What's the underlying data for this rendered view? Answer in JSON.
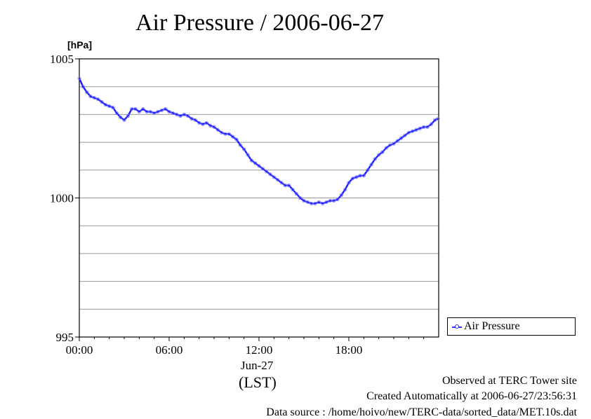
{
  "chart_data": {
    "type": "line",
    "title": "Air Pressure / 2006-06-27",
    "ylabel": "[hPa]",
    "xlabel_date": "Jun-27",
    "xlabel_tz": "(LST)",
    "ylim": [
      995,
      1005
    ],
    "xlim": [
      0,
      24
    ],
    "y_ticks": [
      995,
      1000,
      1005
    ],
    "y_minor_ticks": [
      996,
      997,
      998,
      999,
      1001,
      1002,
      1003,
      1004
    ],
    "x_ticks": [
      {
        "value": 0,
        "label": "00:00"
      },
      {
        "value": 6,
        "label": "06:00"
      },
      {
        "value": 12,
        "label": "12:00"
      },
      {
        "value": 18,
        "label": "18:00"
      }
    ],
    "grid": true,
    "legend": {
      "position": "right",
      "entries": [
        "Air Pressure"
      ]
    },
    "series": [
      {
        "name": "Air Pressure",
        "color": "#3333ff",
        "points": [
          [
            0.0,
            1004.3
          ],
          [
            0.25,
            1004.0
          ],
          [
            0.5,
            1003.8
          ],
          [
            0.75,
            1003.65
          ],
          [
            1.0,
            1003.6
          ],
          [
            1.25,
            1003.55
          ],
          [
            1.5,
            1003.45
          ],
          [
            1.75,
            1003.35
          ],
          [
            2.0,
            1003.3
          ],
          [
            2.25,
            1003.25
          ],
          [
            2.5,
            1003.05
          ],
          [
            2.75,
            1002.9
          ],
          [
            3.0,
            1002.8
          ],
          [
            3.25,
            1002.95
          ],
          [
            3.5,
            1003.2
          ],
          [
            3.75,
            1003.2
          ],
          [
            4.0,
            1003.1
          ],
          [
            4.25,
            1003.2
          ],
          [
            4.5,
            1003.1
          ],
          [
            4.75,
            1003.1
          ],
          [
            5.0,
            1003.05
          ],
          [
            5.25,
            1003.1
          ],
          [
            5.5,
            1003.15
          ],
          [
            5.75,
            1003.2
          ],
          [
            6.0,
            1003.1
          ],
          [
            6.25,
            1003.05
          ],
          [
            6.5,
            1003.0
          ],
          [
            6.75,
            1002.95
          ],
          [
            7.0,
            1003.0
          ],
          [
            7.25,
            1002.95
          ],
          [
            7.5,
            1002.85
          ],
          [
            7.75,
            1002.8
          ],
          [
            8.0,
            1002.7
          ],
          [
            8.25,
            1002.65
          ],
          [
            8.5,
            1002.7
          ],
          [
            8.75,
            1002.6
          ],
          [
            9.0,
            1002.55
          ],
          [
            9.25,
            1002.45
          ],
          [
            9.5,
            1002.35
          ],
          [
            9.75,
            1002.3
          ],
          [
            10.0,
            1002.3
          ],
          [
            10.25,
            1002.2
          ],
          [
            10.5,
            1002.1
          ],
          [
            10.75,
            1001.9
          ],
          [
            11.0,
            1001.75
          ],
          [
            11.25,
            1001.55
          ],
          [
            11.5,
            1001.35
          ],
          [
            11.75,
            1001.25
          ],
          [
            12.0,
            1001.15
          ],
          [
            12.25,
            1001.05
          ],
          [
            12.5,
            1000.95
          ],
          [
            12.75,
            1000.85
          ],
          [
            13.0,
            1000.75
          ],
          [
            13.25,
            1000.65
          ],
          [
            13.5,
            1000.55
          ],
          [
            13.75,
            1000.45
          ],
          [
            14.0,
            1000.45
          ],
          [
            14.25,
            1000.3
          ],
          [
            14.5,
            1000.15
          ],
          [
            14.75,
            1000.0
          ],
          [
            15.0,
            999.9
          ],
          [
            15.25,
            999.85
          ],
          [
            15.5,
            999.8
          ],
          [
            15.75,
            999.8
          ],
          [
            16.0,
            999.85
          ],
          [
            16.25,
            999.8
          ],
          [
            16.5,
            999.85
          ],
          [
            16.75,
            999.9
          ],
          [
            17.0,
            999.9
          ],
          [
            17.25,
            999.95
          ],
          [
            17.5,
            1000.1
          ],
          [
            17.75,
            1000.3
          ],
          [
            18.0,
            1000.55
          ],
          [
            18.25,
            1000.7
          ],
          [
            18.5,
            1000.75
          ],
          [
            18.75,
            1000.8
          ],
          [
            19.0,
            1000.8
          ],
          [
            19.25,
            1001.0
          ],
          [
            19.5,
            1001.2
          ],
          [
            19.75,
            1001.4
          ],
          [
            20.0,
            1001.55
          ],
          [
            20.25,
            1001.65
          ],
          [
            20.5,
            1001.8
          ],
          [
            20.75,
            1001.9
          ],
          [
            21.0,
            1001.95
          ],
          [
            21.25,
            1002.05
          ],
          [
            21.5,
            1002.15
          ],
          [
            21.75,
            1002.25
          ],
          [
            22.0,
            1002.35
          ],
          [
            22.25,
            1002.4
          ],
          [
            22.5,
            1002.45
          ],
          [
            22.75,
            1002.5
          ],
          [
            23.0,
            1002.55
          ],
          [
            23.25,
            1002.55
          ],
          [
            23.5,
            1002.65
          ],
          [
            23.75,
            1002.8
          ],
          [
            23.95,
            1002.85
          ]
        ]
      }
    ]
  },
  "footer": {
    "line1": "Observed at TERC Tower site",
    "line2": "Created Automatically at 2006-06-27/23:56:31",
    "line3": "Data source : /home/hoivo/new/TERC-data/sorted_data/MET.10s.dat"
  }
}
